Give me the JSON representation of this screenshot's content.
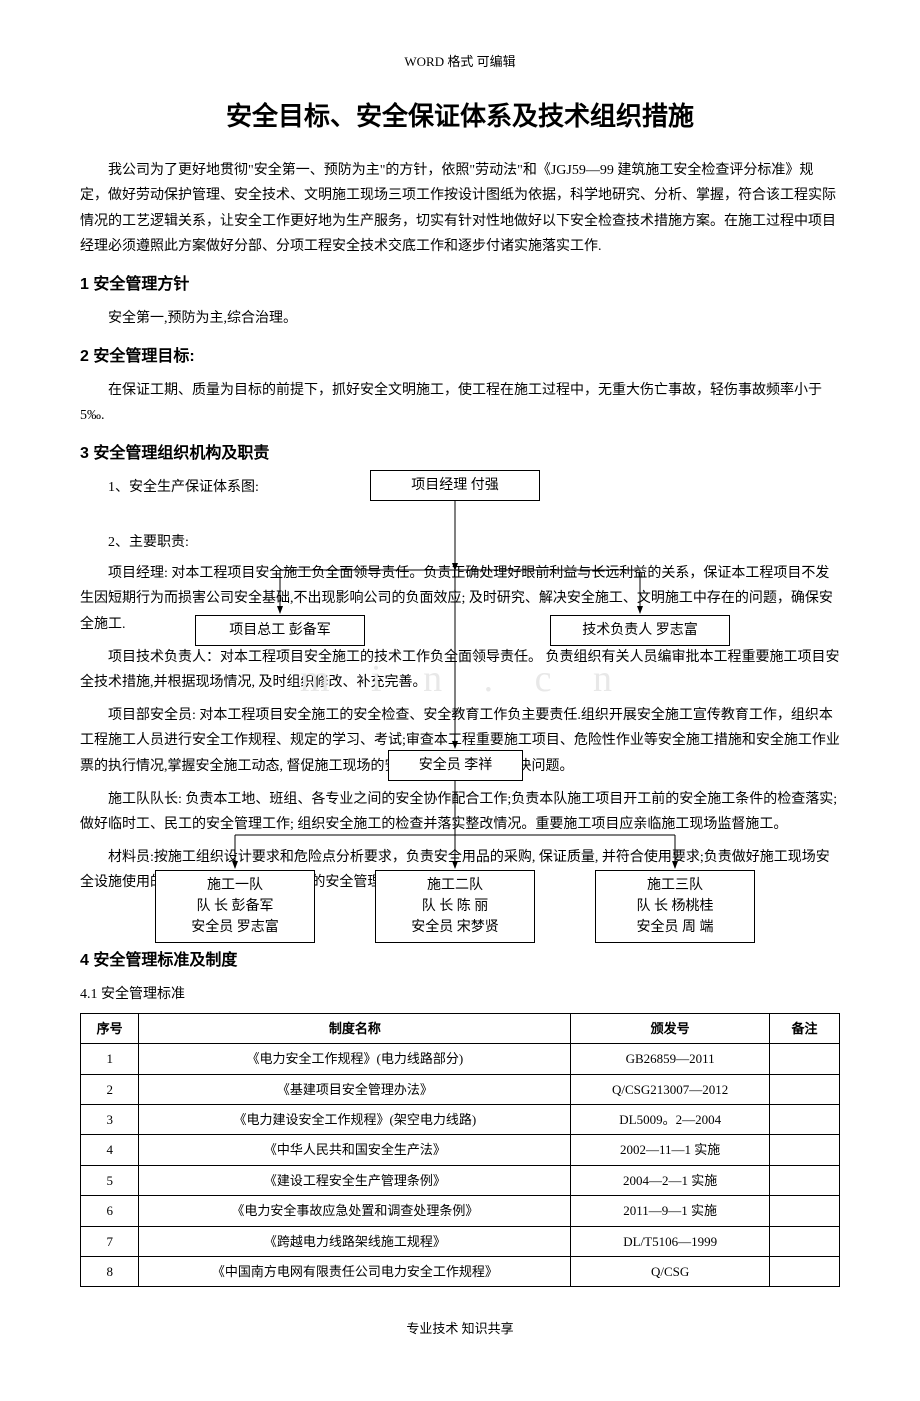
{
  "header": "WORD 格式    可编辑",
  "title": "安全目标、安全保证体系及技术组织措施",
  "intro": "我公司为了更好地贯彻\"安全第一、预防为主\"的方针，依照\"劳动法\"和《JGJ59—99 建筑施工安全检查评分标准》规定，做好劳动保护管理、安全技术、文明施工现场三项工作按设计图纸为依据，科学地研究、分析、掌握，符合该工程实际情况的工艺逻辑关系，让安全工作更好地为生产服务，切实有针对性地做好以下安全检查技术措施方案。在施工过程中项目经理必须遵照此方案做好分部、分项工程安全技术交底工作和逐步付诸实施落实工作.",
  "s1_heading": "1    安全管理方针",
  "s1_body": "安全第一,预防为主,综合治理。",
  "s2_heading": "2    安全管理目标:",
  "s2_body": "在保证工期、质量为目标的前提下，抓好安全文明施工，使工程在施工过程中，无重大伤亡事故，轻伤事故频率小于 5‰.",
  "s3_heading": "3    安全管理组织机构及职责",
  "s3_sub1": "1、安全生产保证体系图:",
  "s3_sub2": "2、主要职责:",
  "p_pm": "项目经理: 对本工程项目安全施工负全面领导责任。负责正确处理好眼前利益与长远利益的关系，保证本工程项目不发生因短期行为而损害公司安全基础,不出现影响公司的负面效应; 及时研究、解决安全施工、文明施工中存在的问题，确保安全施工.",
  "p_tech": "项目技术负责人：对本工程项目安全施工的技术工作负全面领导责任。 负责组织有关人员编审批本工程重要施工项目安全技术措施,并根据现场情况, 及时组织修改、补充完善。",
  "p_safety": "项目部安全员: 对本工程项目安全施工的安全检查、安全教育工作负主要责任.组织开展安全施工宣传教育工作，组织本工程施工人员进行安全工作规程、规定的学习、考试;审查本工程重要施工项目、危险性作业等安全施工措施和安全施工作业票的执行情况,掌握安全施工动态, 督促施工现场的安全管理工作, 协助解决问题。",
  "p_team": "施工队队长: 负责本工地、班组、各专业之间的安全协作配合工作;负责本队施工项目开工前的安全施工条件的检查落实;做好临时工、民工的安全管理工作; 组织安全施工的检查并落实整改情况。重要施工项目应亲临施工现场监督施工。",
  "p_mat": "材料员:按施工组织设计要求和危险点分析要求，负责安全用品的采购, 保证质量, 并符合使用要求;负责做好施工现场安全设施使用的监控工作; 加强临时仓库的安全管理。",
  "s4_heading": "4    安全管理标准及制度",
  "s4_sub": "4.1 安全管理标准",
  "org": {
    "pm": "项目经理  付强",
    "gm": "项目总工  彭备军",
    "tech": "技术负责人 罗志富",
    "safe": "安全员 李祥",
    "t1_name": "施工一队",
    "t1_leader": "队 长  彭备军",
    "t1_safe": "安全员  罗志富",
    "t2_name": "施工二队",
    "t2_leader": "队 长  陈 丽",
    "t2_safe": "安全员  宋梦贤",
    "t3_name": "施工三队",
    "t3_leader": "队 长  杨桃桂",
    "t3_safe": "安全员  周 端"
  },
  "watermark": "m i n . c n",
  "table": {
    "headers": [
      "序号",
      "制度名称",
      "颁发号",
      "备注"
    ],
    "rows": [
      [
        "1",
        "《电力安全工作规程》(电力线路部分)",
        "GB26859—2011",
        ""
      ],
      [
        "2",
        "《基建项目安全管理办法》",
        "Q/CSG213007—2012",
        ""
      ],
      [
        "3",
        "《电力建设安全工作规程》(架空电力线路)",
        "DL5009。2—2004",
        ""
      ],
      [
        "4",
        "《中华人民共和国安全生产法》",
        "2002—11—1 实施",
        ""
      ],
      [
        "5",
        "《建设工程安全生产管理条例》",
        "2004—2—1 实施",
        ""
      ],
      [
        "6",
        "《电力安全事故应急处置和调查处理条例》",
        "2011—9—1 实施",
        ""
      ],
      [
        "7",
        "《跨越电力线路架线施工规程》",
        "DL/T5106—1999",
        ""
      ],
      [
        "8",
        "《中国南方电网有限责任公司电力安全工作规程》",
        "Q/CSG",
        ""
      ]
    ]
  },
  "footer": "专业技术    知识共享"
}
